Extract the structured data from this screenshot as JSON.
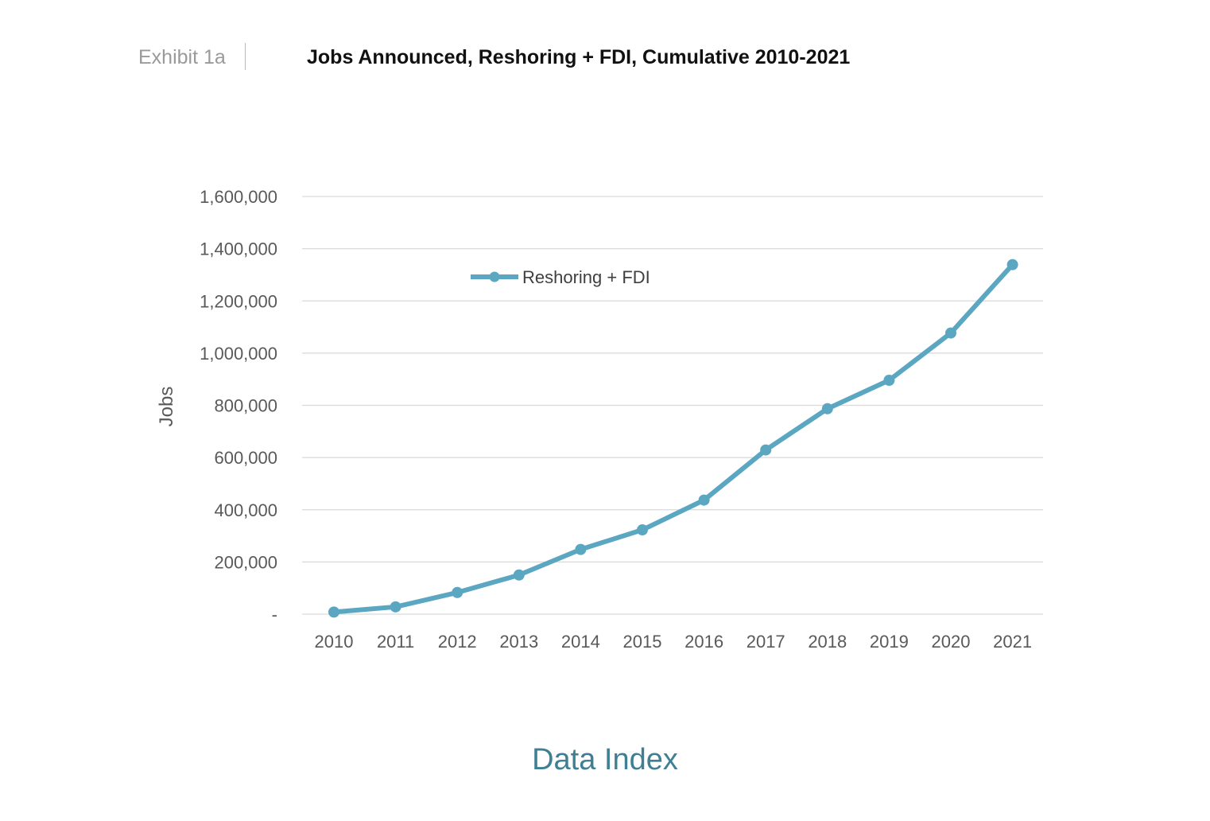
{
  "header": {
    "exhibit_label": "Exhibit 1a",
    "title": "Jobs Announced, Reshoring + FDI, Cumulative 2010-2021"
  },
  "footer": {
    "title": "Data Index"
  },
  "colors": {
    "series": "#5ba7c2",
    "grid": "#d9d9d9",
    "axis_text": "#595959",
    "footer": "#3f7f94"
  },
  "chart_data": {
    "type": "line",
    "title": "Jobs Announced, Reshoring + FDI, Cumulative 2010-2021",
    "xlabel": "",
    "ylabel": "Jobs",
    "categories": [
      "2010",
      "2011",
      "2012",
      "2013",
      "2014",
      "2015",
      "2016",
      "2017",
      "2018",
      "2019",
      "2020",
      "2021"
    ],
    "series": [
      {
        "name": "Reshoring + FDI",
        "values": [
          8000,
          28000,
          83000,
          150000,
          248000,
          323000,
          437000,
          629000,
          787000,
          896000,
          1077000,
          1339000
        ]
      }
    ],
    "ylim": [
      0,
      1600000
    ],
    "yticks": [
      0,
      200000,
      400000,
      600000,
      800000,
      1000000,
      1200000,
      1400000,
      1600000
    ],
    "ytick_labels": [
      "-",
      "200,000",
      "400,000",
      "600,000",
      "800,000",
      "1,000,000",
      "1,200,000",
      "1,400,000",
      "1,600,000"
    ],
    "grid": true,
    "legend_position": "top-left"
  }
}
